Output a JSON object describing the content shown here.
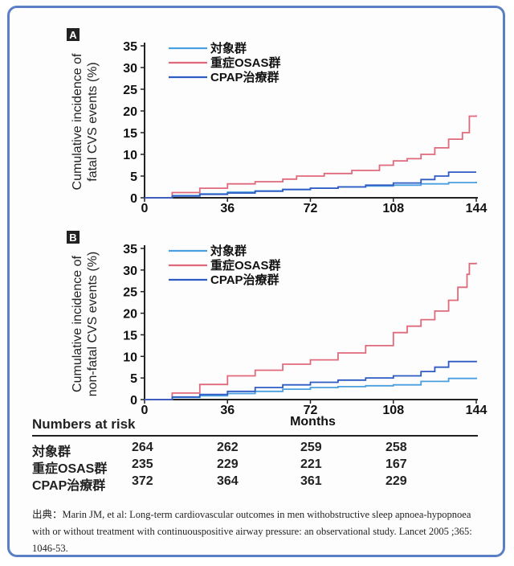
{
  "chart_data": [
    {
      "type": "line",
      "panel": "A",
      "ylabel_line1": "Cumulative incidence of",
      "ylabel_line2": "fatal CVS events (%)",
      "xlabel": "",
      "xticks": [
        0,
        36,
        72,
        108,
        144
      ],
      "yticks": [
        0,
        5,
        10,
        15,
        20,
        25,
        30,
        35
      ],
      "xlim": [
        0,
        144
      ],
      "ylim": [
        0,
        35
      ],
      "legend_position": "top-left",
      "series": [
        {
          "name": "対象群",
          "color": "#4a9fe0",
          "points": [
            [
              0,
              0
            ],
            [
              12,
              0.5
            ],
            [
              24,
              0.9
            ],
            [
              36,
              1.3
            ],
            [
              48,
              1.6
            ],
            [
              60,
              1.9
            ],
            [
              72,
              2.2
            ],
            [
              84,
              2.5
            ],
            [
              96,
              2.7
            ],
            [
              108,
              2.9
            ],
            [
              120,
              3.2
            ],
            [
              132,
              3.5
            ],
            [
              144,
              3.7
            ]
          ]
        },
        {
          "name": "重症OSAS群",
          "color": "#e06a7c",
          "points": [
            [
              0,
              0
            ],
            [
              12,
              1.2
            ],
            [
              24,
              2.2
            ],
            [
              36,
              3.2
            ],
            [
              48,
              3.7
            ],
            [
              60,
              4.3
            ],
            [
              66,
              5
            ],
            [
              78,
              5.6
            ],
            [
              90,
              6.3
            ],
            [
              102,
              7.5
            ],
            [
              108,
              8.5
            ],
            [
              114,
              9
            ],
            [
              120,
              10
            ],
            [
              126,
              11.5
            ],
            [
              132,
              13.5
            ],
            [
              138,
              15
            ],
            [
              141,
              18.8
            ],
            [
              144,
              19
            ]
          ]
        },
        {
          "name": "CPAP治療群",
          "color": "#2e5bc4",
          "points": [
            [
              0,
              0
            ],
            [
              12,
              0.4
            ],
            [
              24,
              0.8
            ],
            [
              36,
              1.1
            ],
            [
              48,
              1.5
            ],
            [
              60,
              1.9
            ],
            [
              72,
              2.2
            ],
            [
              84,
              2.5
            ],
            [
              96,
              2.9
            ],
            [
              108,
              3.4
            ],
            [
              120,
              4.2
            ],
            [
              126,
              5
            ],
            [
              132,
              5.9
            ],
            [
              144,
              5.9
            ]
          ]
        }
      ]
    },
    {
      "type": "line",
      "panel": "B",
      "ylabel_line1": "Cumulative incidence of",
      "ylabel_line2": "non-fatal CVS events (%)",
      "xlabel": "Months",
      "xticks": [
        0,
        36,
        72,
        108,
        144
      ],
      "yticks": [
        0,
        5,
        10,
        15,
        20,
        25,
        30,
        35
      ],
      "xlim": [
        0,
        144
      ],
      "ylim": [
        0,
        35
      ],
      "legend_position": "top-left",
      "series": [
        {
          "name": "対象群",
          "color": "#4a9fe0",
          "points": [
            [
              0,
              0
            ],
            [
              12,
              0.5
            ],
            [
              24,
              0.9
            ],
            [
              36,
              1.4
            ],
            [
              48,
              1.9
            ],
            [
              60,
              2.4
            ],
            [
              72,
              2.8
            ],
            [
              84,
              3
            ],
            [
              96,
              3.2
            ],
            [
              108,
              3.4
            ],
            [
              120,
              4.2
            ],
            [
              132,
              4.9
            ],
            [
              144,
              5.1
            ]
          ]
        },
        {
          "name": "重症OSAS群",
          "color": "#e06a7c",
          "points": [
            [
              0,
              0
            ],
            [
              12,
              1.5
            ],
            [
              24,
              3.5
            ],
            [
              36,
              5.5
            ],
            [
              48,
              6.8
            ],
            [
              60,
              8.2
            ],
            [
              72,
              9.2
            ],
            [
              84,
              10.8
            ],
            [
              96,
              12.5
            ],
            [
              108,
              15.5
            ],
            [
              114,
              17
            ],
            [
              120,
              18.5
            ],
            [
              126,
              20.5
            ],
            [
              132,
              23
            ],
            [
              136,
              26
            ],
            [
              140,
              29
            ],
            [
              141,
              31.5
            ],
            [
              144,
              31.7
            ]
          ]
        },
        {
          "name": "CPAP治療群",
          "color": "#2e5bc4",
          "points": [
            [
              0,
              0
            ],
            [
              12,
              0.6
            ],
            [
              24,
              1.2
            ],
            [
              36,
              1.9
            ],
            [
              48,
              2.8
            ],
            [
              60,
              3.4
            ],
            [
              72,
              4
            ],
            [
              84,
              4.5
            ],
            [
              96,
              5
            ],
            [
              108,
              5.5
            ],
            [
              120,
              6.5
            ],
            [
              126,
              7.5
            ],
            [
              132,
              8.8
            ],
            [
              144,
              9
            ]
          ]
        }
      ]
    }
  ],
  "risk_table": {
    "title": "Numbers at risk",
    "rows": [
      {
        "label": "対象群",
        "values": [
          "264",
          "262",
          "259",
          "258"
        ]
      },
      {
        "label": "重症OSAS群",
        "values": [
          "235",
          "229",
          "221",
          "167"
        ]
      },
      {
        "label": "CPAP治療群",
        "values": [
          "372",
          "364",
          "361",
          "229"
        ]
      }
    ]
  },
  "source_text": "出典：Marin JM, et al: Long-term cardiovascular outcomes in men withobstructive sleep apnoea-hypopnoea with or without treatment with continuouspositive airway pressure: an observational study. Lancet 2005 ;365: 1046-53."
}
